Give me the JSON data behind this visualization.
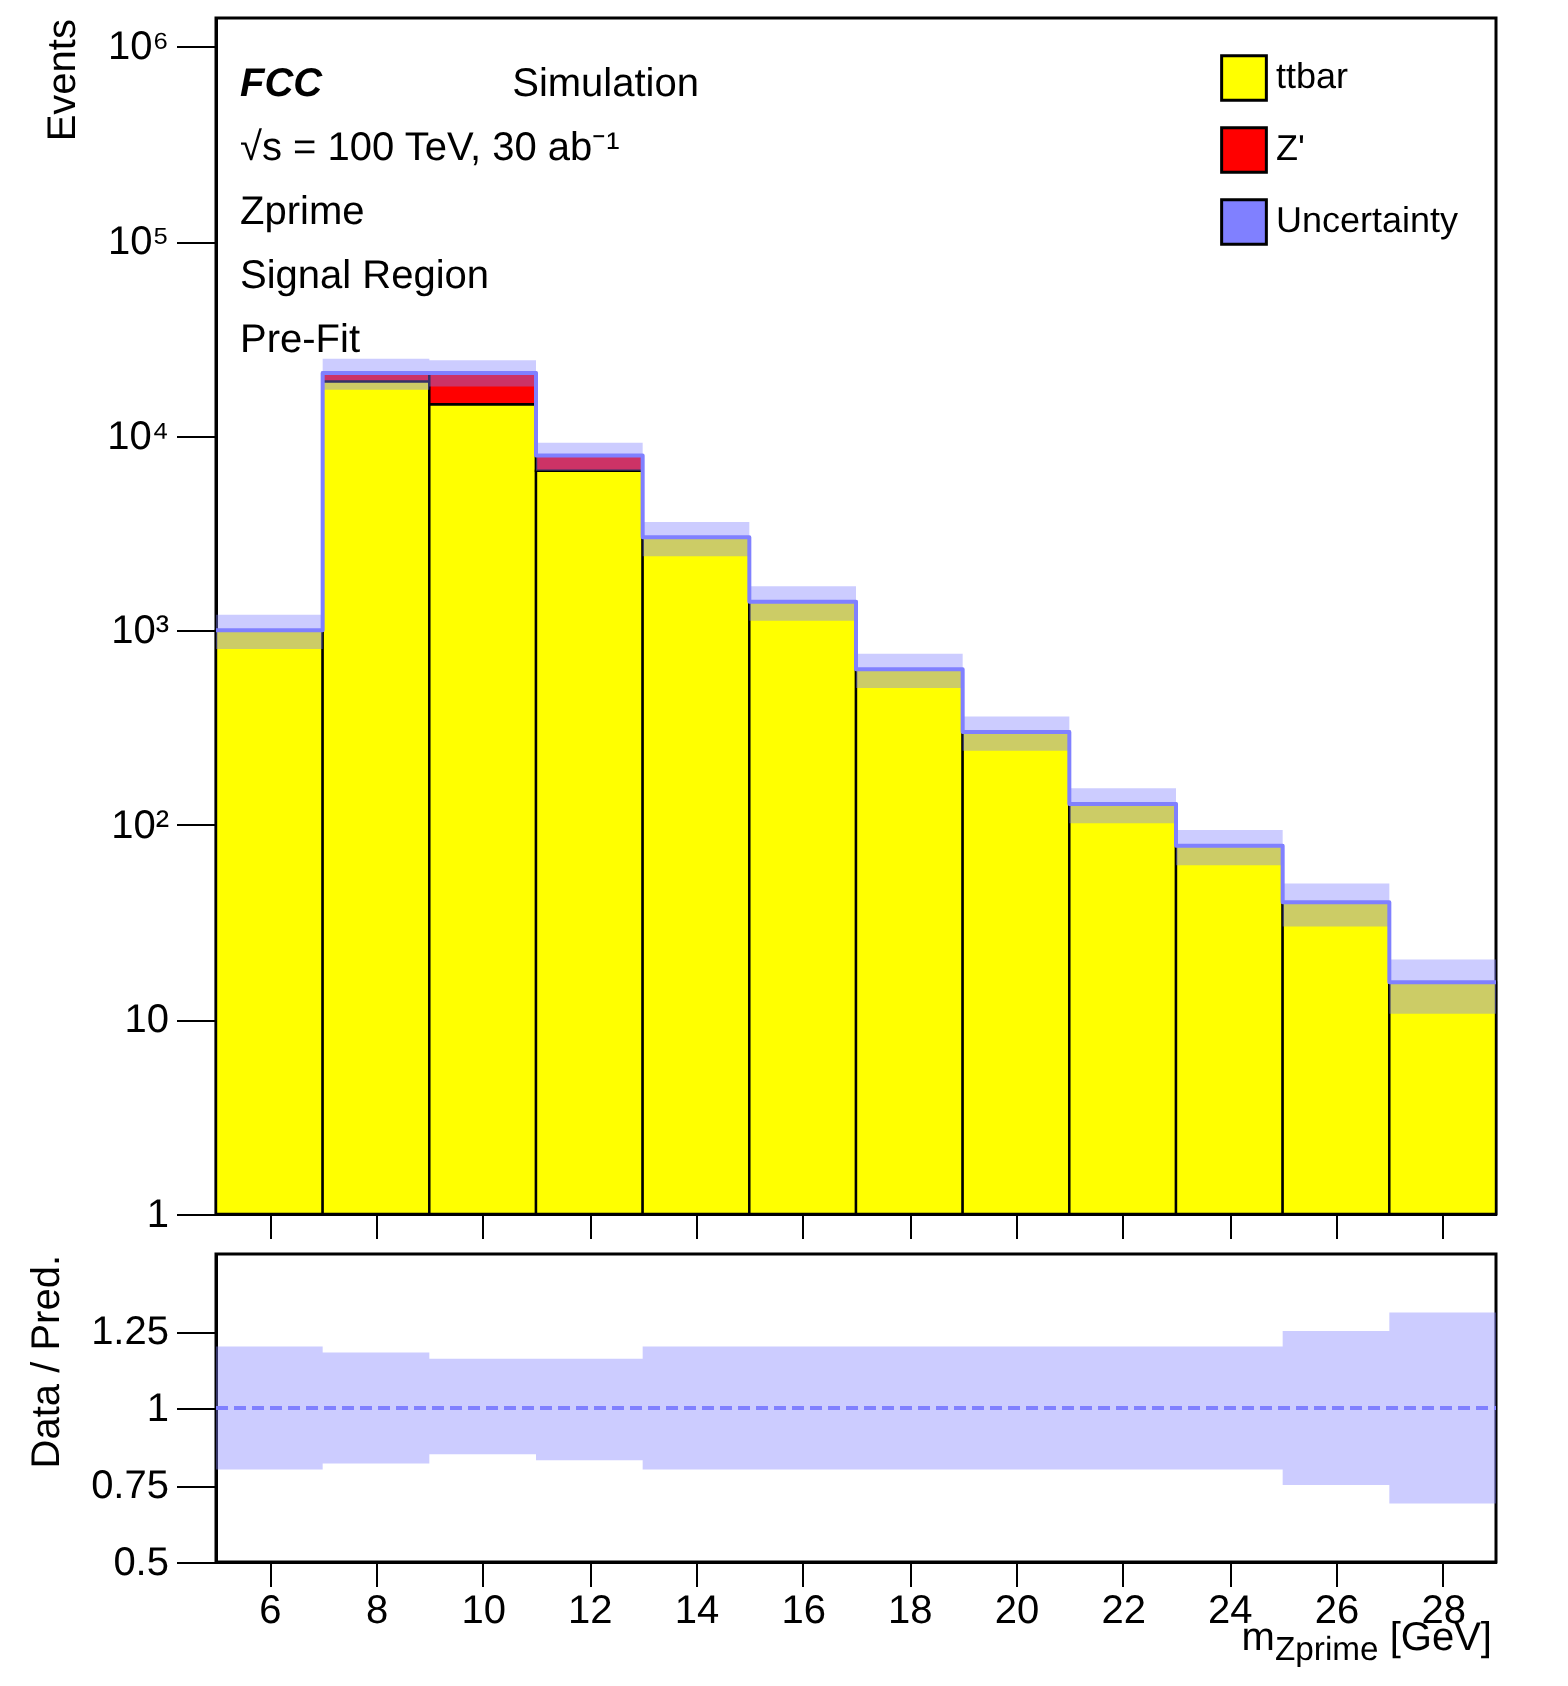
{
  "chart_data": [
    {
      "type": "bar",
      "ylabel": "Events",
      "x": [
        6,
        8,
        10,
        12,
        14,
        16,
        18,
        20,
        22,
        24,
        26,
        28
      ],
      "stacked": true,
      "log": "y",
      "legend": "top right",
      "tick_labels": "y",
      "xlim": [
        5,
        29
      ],
      "ylim": [
        1,
        1400000
      ],
      "xticks": [
        6,
        8,
        10,
        12,
        14,
        16,
        18,
        20,
        22,
        24,
        26,
        28
      ],
      "yticks": [
        1,
        10,
        {
          "value": 100,
          "label": "10²"
        },
        {
          "value": 1000,
          "label": "10³"
        },
        {
          "value": 10000,
          "label": "10⁴"
        },
        {
          "value": 100000,
          "label": "10⁵"
        },
        {
          "value": 1000000,
          "label": "10⁶"
        }
      ],
      "annotations": [
        "FCC",
        "Simulation",
        "√s = 100 TeV, 30 ab⁻¹",
        "Zprime",
        "Signal Region",
        "Pre-Fit"
      ],
      "series": [
        {
          "name": "ttbar",
          "color": "#ffff00",
          "values": [
            1000,
            19000,
            14500,
            6600,
            3000,
            1400,
            630,
            300,
            128,
            78,
            40,
            15.5
          ]
        },
        {
          "name": "Z'",
          "color": "#ff0000",
          "values": [
            null,
            2000,
            6500,
            1300,
            null,
            null,
            null,
            null,
            null,
            null,
            null,
            null
          ]
        },
        {
          "name": "Uncertainty",
          "type": "step",
          "color": "#8080ff",
          "x": [
            5,
            7,
            9,
            11,
            13,
            15,
            17,
            19,
            21,
            23,
            25,
            27,
            29
          ],
          "values": [
            1000,
            21000,
            21000,
            7900,
            3000,
            1400,
            630,
            300,
            128,
            78,
            40,
            15.5,
            15.5
          ],
          "lower": [
            800,
            17200,
            17900,
            6600,
            2400,
            1120,
            504,
            240,
            102,
            62,
            30,
            10.7,
            10.7
          ],
          "upper": [
            1200,
            24800,
            24400,
            9200,
            3600,
            1680,
            756,
            360,
            154,
            94,
            50,
            20.3,
            20.3
          ]
        }
      ]
    },
    {
      "type": "step",
      "ylabel": "Data / Pred.",
      "xlabel": "m$_{Zprime}$ [GeV]",
      "line_style": "dashed",
      "xlim": [
        5,
        29
      ],
      "ylim": [
        0.5,
        1.5
      ],
      "xticks": [
        6,
        8,
        10,
        12,
        14,
        16,
        18,
        20,
        22,
        24,
        26,
        28
      ],
      "yticks": [
        0.5,
        0.75,
        1,
        1.25
      ],
      "series": [
        {
          "color": "#8080ff",
          "x": [
            5,
            7,
            9,
            11,
            13,
            15,
            17,
            19,
            21,
            23,
            25,
            27,
            29
          ],
          "values": [
            1,
            1,
            1,
            1,
            1,
            1,
            1,
            1,
            1,
            1,
            1,
            1,
            1
          ],
          "lower": [
            0.8,
            0.82,
            0.85,
            0.83,
            0.8,
            0.8,
            0.8,
            0.8,
            0.8,
            0.8,
            0.75,
            0.69,
            0.69
          ],
          "upper": [
            1.2,
            1.18,
            1.16,
            1.16,
            1.2,
            1.2,
            1.2,
            1.2,
            1.2,
            1.2,
            1.25,
            1.31,
            1.31
          ]
        }
      ]
    }
  ]
}
